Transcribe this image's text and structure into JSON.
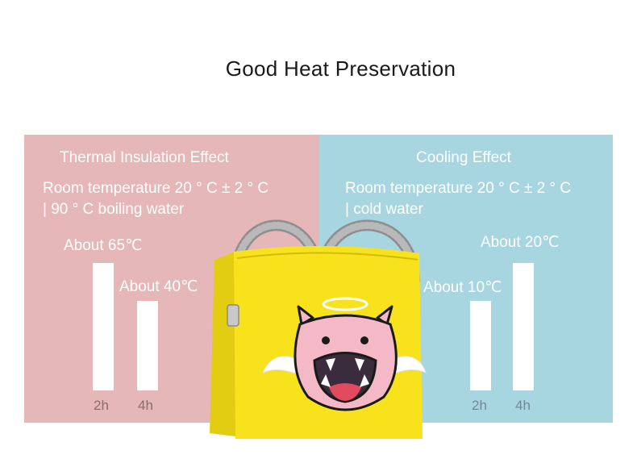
{
  "page": {
    "title": "Good Heat Preservation"
  },
  "thermal": {
    "heading": "Thermal Insulation Effect",
    "condition_line1": "Room temperature 20 ° C ± 2 ° C",
    "condition_line2": "| 90 ° C boiling water",
    "bar_2h_label": "About 65℃",
    "bar_4h_label": "About 40℃",
    "time_2h": "2h",
    "time_4h": "4h",
    "color": "#e5b7b9"
  },
  "cooling": {
    "heading": "Cooling Effect",
    "condition_line1": "Room temperature 20 ° C ± 2 ° C",
    "condition_line2": "| cold water",
    "bar_2h_label": "About 10℃",
    "bar_4h_label": "About 20℃",
    "time_2h": "2h",
    "time_4h": "4h",
    "color": "#a8d6e0"
  },
  "illustration": {
    "subject": "yellow-lunch-bag-with-pink-monster-icon",
    "bag_color": "#f7e21c"
  }
}
